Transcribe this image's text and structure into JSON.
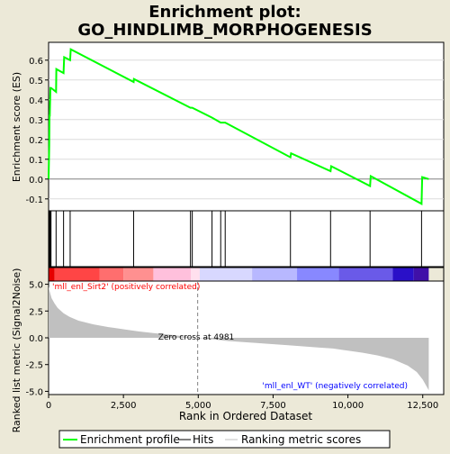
{
  "chart_data": {
    "type": "line",
    "title": "Enrichment plot:",
    "subtitle": "GO_HINDLIMB_MORPHOGENESIS",
    "colors": {
      "background": "#ece9d8",
      "profile": "#00ff00",
      "hits": "#000000",
      "metric_fill": "#c0c0c0",
      "zero_line": "#808080",
      "pos_label": "#ff0000",
      "neg_label": "#0000ff"
    },
    "top_panel": {
      "ylabel": "Enrichment score (ES)",
      "ylim": [
        -0.16,
        0.69
      ],
      "yticks": [
        "-0.1",
        "0.0",
        "0.1",
        "0.2",
        "0.3",
        "0.4",
        "0.5",
        "0.6"
      ],
      "ytick_values": [
        -0.1,
        0.0,
        0.1,
        0.2,
        0.3,
        0.4,
        0.5,
        0.6
      ],
      "series": [
        {
          "name": "Enrichment profile",
          "x": [
            0,
            20,
            30,
            40,
            60,
            80,
            250,
            260,
            500,
            520,
            720,
            740,
            2840,
            2850,
            4740,
            4800,
            5460,
            5750,
            5900,
            8080,
            8100,
            9420,
            9440,
            10740,
            10760,
            12460,
            12480,
            12700
          ],
          "y": [
            0.0,
            0.17,
            0.32,
            0.32,
            0.46,
            0.46,
            0.44,
            0.555,
            0.535,
            0.615,
            0.6,
            0.655,
            0.49,
            0.505,
            0.36,
            0.36,
            0.31,
            0.285,
            0.285,
            0.11,
            0.13,
            0.04,
            0.065,
            -0.035,
            0.015,
            -0.125,
            0.01,
            0.0
          ]
        }
      ]
    },
    "hits": [
      10,
      25,
      45,
      60,
      80,
      250,
      500,
      720,
      2840,
      4740,
      4800,
      5460,
      5750,
      5900,
      8080,
      9420,
      10740,
      12460
    ],
    "rank_bar": {
      "segments": [
        {
          "from": 0,
          "to": 200,
          "color": "#e60000"
        },
        {
          "from": 200,
          "to": 1700,
          "color": "#ff4545"
        },
        {
          "from": 1700,
          "to": 2500,
          "color": "#ff6e6e"
        },
        {
          "from": 2500,
          "to": 3500,
          "color": "#ff9090"
        },
        {
          "from": 3500,
          "to": 4750,
          "color": "#ffc0dc"
        },
        {
          "from": 4750,
          "to": 5050,
          "color": "#ffe0ee"
        },
        {
          "from": 5050,
          "to": 6800,
          "color": "#d8d8ff"
        },
        {
          "from": 6800,
          "to": 8300,
          "color": "#b8b8ff"
        },
        {
          "from": 8300,
          "to": 9700,
          "color": "#8888ff"
        },
        {
          "from": 9700,
          "to": 11500,
          "color": "#6a5ae8"
        },
        {
          "from": 11500,
          "to": 12200,
          "color": "#2a10c8"
        },
        {
          "from": 12200,
          "to": 12700,
          "color": "#4010a8"
        }
      ]
    },
    "bottom_panel": {
      "ylabel": "Ranked list metric (Signal2Noise)",
      "ylim": [
        -5.3,
        5.3
      ],
      "yticks": [
        "5.0",
        "2.5",
        "0.0",
        "-2.5",
        "-5.0"
      ],
      "ytick_values": [
        5.0,
        2.5,
        0.0,
        -2.5,
        -5.0
      ],
      "metric": {
        "x": [
          0,
          30,
          100,
          200,
          300,
          500,
          700,
          1000,
          1500,
          2000,
          2500,
          3000,
          3500,
          4000,
          4500,
          4981,
          5500,
          6000,
          7000,
          8000,
          9000,
          9500,
          10000,
          10500,
          11000,
          11500,
          12000,
          12300,
          12500,
          12700
        ],
        "y": [
          4.8,
          4.4,
          3.7,
          3.2,
          2.8,
          2.3,
          1.95,
          1.6,
          1.25,
          1.0,
          0.8,
          0.6,
          0.45,
          0.3,
          0.15,
          0.0,
          -0.15,
          -0.3,
          -0.5,
          -0.7,
          -0.9,
          -1.0,
          -1.2,
          -1.4,
          -1.65,
          -2.0,
          -2.6,
          -3.2,
          -3.9,
          -4.9
        ]
      },
      "zero_cross_x": 4981,
      "zero_cross_label": "Zero cross at 4981",
      "pos_label": "'mll_enl_Sirt2' (positively correlated)",
      "neg_label": "'mll_enl_WT' (negatively correlated)"
    },
    "x_axis": {
      "label": "Rank in Ordered Dataset",
      "xlim": [
        0,
        13200
      ],
      "ticks": [
        "0",
        "2,500",
        "5,000",
        "7,500",
        "10,000",
        "12,500"
      ],
      "tick_values": [
        0,
        2500,
        5000,
        7500,
        10000,
        12500
      ]
    },
    "legend": {
      "placement": "bottom",
      "entries": [
        "Enrichment profile",
        "Hits",
        "Ranking metric scores"
      ]
    }
  }
}
